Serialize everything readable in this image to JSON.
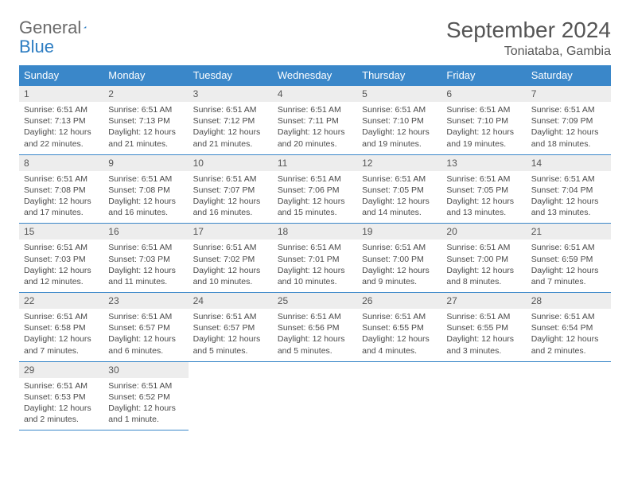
{
  "brand": {
    "part1": "General",
    "part2": "Blue"
  },
  "title": "September 2024",
  "location": "Toniataba, Gambia",
  "colors": {
    "header_bg": "#3a87c9",
    "header_text": "#ffffff",
    "daynum_bg": "#ededed",
    "row_border": "#3a87c9",
    "body_text": "#4a4a4a"
  },
  "typography": {
    "title_fontsize": 28,
    "location_fontsize": 16,
    "dayhead_fontsize": 13,
    "daynum_fontsize": 12,
    "body_fontsize": 10.5
  },
  "day_headers": [
    "Sunday",
    "Monday",
    "Tuesday",
    "Wednesday",
    "Thursday",
    "Friday",
    "Saturday"
  ],
  "weeks": [
    [
      {
        "n": "1",
        "sunrise": "Sunrise: 6:51 AM",
        "sunset": "Sunset: 7:13 PM",
        "daylight": "Daylight: 12 hours and 22 minutes."
      },
      {
        "n": "2",
        "sunrise": "Sunrise: 6:51 AM",
        "sunset": "Sunset: 7:13 PM",
        "daylight": "Daylight: 12 hours and 21 minutes."
      },
      {
        "n": "3",
        "sunrise": "Sunrise: 6:51 AM",
        "sunset": "Sunset: 7:12 PM",
        "daylight": "Daylight: 12 hours and 21 minutes."
      },
      {
        "n": "4",
        "sunrise": "Sunrise: 6:51 AM",
        "sunset": "Sunset: 7:11 PM",
        "daylight": "Daylight: 12 hours and 20 minutes."
      },
      {
        "n": "5",
        "sunrise": "Sunrise: 6:51 AM",
        "sunset": "Sunset: 7:10 PM",
        "daylight": "Daylight: 12 hours and 19 minutes."
      },
      {
        "n": "6",
        "sunrise": "Sunrise: 6:51 AM",
        "sunset": "Sunset: 7:10 PM",
        "daylight": "Daylight: 12 hours and 19 minutes."
      },
      {
        "n": "7",
        "sunrise": "Sunrise: 6:51 AM",
        "sunset": "Sunset: 7:09 PM",
        "daylight": "Daylight: 12 hours and 18 minutes."
      }
    ],
    [
      {
        "n": "8",
        "sunrise": "Sunrise: 6:51 AM",
        "sunset": "Sunset: 7:08 PM",
        "daylight": "Daylight: 12 hours and 17 minutes."
      },
      {
        "n": "9",
        "sunrise": "Sunrise: 6:51 AM",
        "sunset": "Sunset: 7:08 PM",
        "daylight": "Daylight: 12 hours and 16 minutes."
      },
      {
        "n": "10",
        "sunrise": "Sunrise: 6:51 AM",
        "sunset": "Sunset: 7:07 PM",
        "daylight": "Daylight: 12 hours and 16 minutes."
      },
      {
        "n": "11",
        "sunrise": "Sunrise: 6:51 AM",
        "sunset": "Sunset: 7:06 PM",
        "daylight": "Daylight: 12 hours and 15 minutes."
      },
      {
        "n": "12",
        "sunrise": "Sunrise: 6:51 AM",
        "sunset": "Sunset: 7:05 PM",
        "daylight": "Daylight: 12 hours and 14 minutes."
      },
      {
        "n": "13",
        "sunrise": "Sunrise: 6:51 AM",
        "sunset": "Sunset: 7:05 PM",
        "daylight": "Daylight: 12 hours and 13 minutes."
      },
      {
        "n": "14",
        "sunrise": "Sunrise: 6:51 AM",
        "sunset": "Sunset: 7:04 PM",
        "daylight": "Daylight: 12 hours and 13 minutes."
      }
    ],
    [
      {
        "n": "15",
        "sunrise": "Sunrise: 6:51 AM",
        "sunset": "Sunset: 7:03 PM",
        "daylight": "Daylight: 12 hours and 12 minutes."
      },
      {
        "n": "16",
        "sunrise": "Sunrise: 6:51 AM",
        "sunset": "Sunset: 7:03 PM",
        "daylight": "Daylight: 12 hours and 11 minutes."
      },
      {
        "n": "17",
        "sunrise": "Sunrise: 6:51 AM",
        "sunset": "Sunset: 7:02 PM",
        "daylight": "Daylight: 12 hours and 10 minutes."
      },
      {
        "n": "18",
        "sunrise": "Sunrise: 6:51 AM",
        "sunset": "Sunset: 7:01 PM",
        "daylight": "Daylight: 12 hours and 10 minutes."
      },
      {
        "n": "19",
        "sunrise": "Sunrise: 6:51 AM",
        "sunset": "Sunset: 7:00 PM",
        "daylight": "Daylight: 12 hours and 9 minutes."
      },
      {
        "n": "20",
        "sunrise": "Sunrise: 6:51 AM",
        "sunset": "Sunset: 7:00 PM",
        "daylight": "Daylight: 12 hours and 8 minutes."
      },
      {
        "n": "21",
        "sunrise": "Sunrise: 6:51 AM",
        "sunset": "Sunset: 6:59 PM",
        "daylight": "Daylight: 12 hours and 7 minutes."
      }
    ],
    [
      {
        "n": "22",
        "sunrise": "Sunrise: 6:51 AM",
        "sunset": "Sunset: 6:58 PM",
        "daylight": "Daylight: 12 hours and 7 minutes."
      },
      {
        "n": "23",
        "sunrise": "Sunrise: 6:51 AM",
        "sunset": "Sunset: 6:57 PM",
        "daylight": "Daylight: 12 hours and 6 minutes."
      },
      {
        "n": "24",
        "sunrise": "Sunrise: 6:51 AM",
        "sunset": "Sunset: 6:57 PM",
        "daylight": "Daylight: 12 hours and 5 minutes."
      },
      {
        "n": "25",
        "sunrise": "Sunrise: 6:51 AM",
        "sunset": "Sunset: 6:56 PM",
        "daylight": "Daylight: 12 hours and 5 minutes."
      },
      {
        "n": "26",
        "sunrise": "Sunrise: 6:51 AM",
        "sunset": "Sunset: 6:55 PM",
        "daylight": "Daylight: 12 hours and 4 minutes."
      },
      {
        "n": "27",
        "sunrise": "Sunrise: 6:51 AM",
        "sunset": "Sunset: 6:55 PM",
        "daylight": "Daylight: 12 hours and 3 minutes."
      },
      {
        "n": "28",
        "sunrise": "Sunrise: 6:51 AM",
        "sunset": "Sunset: 6:54 PM",
        "daylight": "Daylight: 12 hours and 2 minutes."
      }
    ],
    [
      {
        "n": "29",
        "sunrise": "Sunrise: 6:51 AM",
        "sunset": "Sunset: 6:53 PM",
        "daylight": "Daylight: 12 hours and 2 minutes."
      },
      {
        "n": "30",
        "sunrise": "Sunrise: 6:51 AM",
        "sunset": "Sunset: 6:52 PM",
        "daylight": "Daylight: 12 hours and 1 minute."
      },
      null,
      null,
      null,
      null,
      null
    ]
  ]
}
